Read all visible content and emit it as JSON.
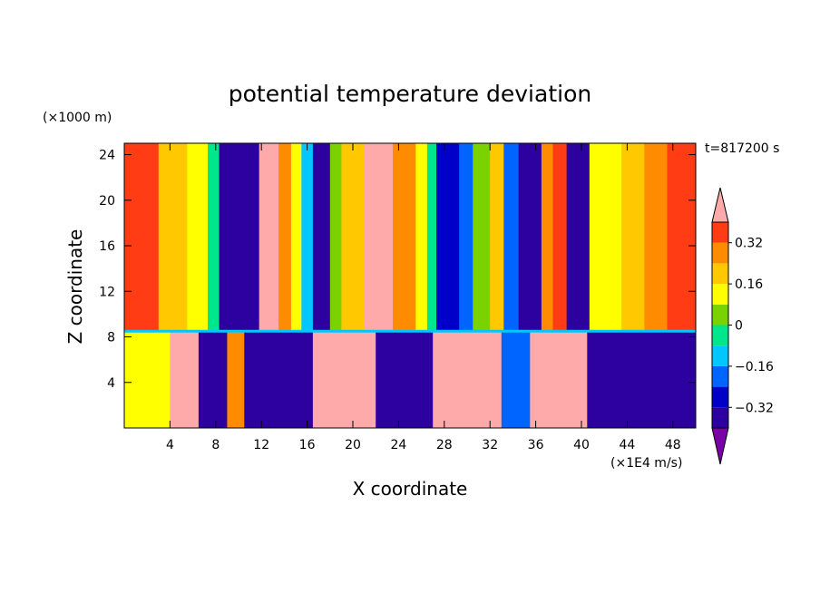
{
  "chart_data": {
    "type": "heatmap",
    "title": "potential temperature deviation",
    "xlabel": "X coordinate",
    "ylabel": "Z coordinate",
    "x_unit": "(×1E4 m/s)",
    "y_unit": "(×1000 m)",
    "time_label": "t=817200 s",
    "xlim": [
      0,
      50
    ],
    "ylim": [
      0,
      25
    ],
    "x_ticks": [
      4,
      8,
      12,
      16,
      20,
      24,
      28,
      32,
      36,
      40,
      44,
      48
    ],
    "y_ticks": [
      4,
      8,
      12,
      16,
      20,
      24
    ],
    "colorbar": {
      "levels": [
        -0.4,
        -0.32,
        -0.24,
        -0.16,
        -0.08,
        0,
        0.08,
        0.16,
        0.24,
        0.32,
        0.4
      ],
      "labels": [
        "0.32",
        "0.16",
        "0",
        "−0.16",
        "−0.32"
      ],
      "label_values": [
        0.32,
        0.16,
        0,
        -0.16,
        -0.32
      ],
      "colors": [
        "#7a00aa",
        "#2d00a0",
        "#0000c8",
        "#0064ff",
        "#00c8ff",
        "#00e68c",
        "#7ad200",
        "#ffff00",
        "#ffc800",
        "#ff8c00",
        "#ff3c14",
        "#ffaaaa"
      ],
      "extend": "both"
    },
    "columns": [
      {
        "x_start": 0,
        "x_end": 3,
        "value": 0.33
      },
      {
        "x_start": 3,
        "x_end": 5.5,
        "value": 0.21
      },
      {
        "x_start": 5.5,
        "x_end": 7.3,
        "value": 0.1
      },
      {
        "x_start": 7.3,
        "x_end": 8.3,
        "value": -0.05
      },
      {
        "x_start": 8.3,
        "x_end": 11.8,
        "value": -0.4
      },
      {
        "x_start": 11.8,
        "x_end": 13.5,
        "value": 0.42
      },
      {
        "x_start": 13.5,
        "x_end": 14.6,
        "value": 0.25
      },
      {
        "x_start": 14.6,
        "x_end": 15.5,
        "value": 0.1
      },
      {
        "x_start": 15.5,
        "x_end": 16.5,
        "value": -0.12
      },
      {
        "x_start": 16.5,
        "x_end": 18,
        "value": -0.4
      },
      {
        "x_start": 18,
        "x_end": 19,
        "value": 0.05
      },
      {
        "x_start": 19,
        "x_end": 21,
        "value": 0.2
      },
      {
        "x_start": 21,
        "x_end": 23.5,
        "value": 0.42
      },
      {
        "x_start": 23.5,
        "x_end": 25.5,
        "value": 0.28
      },
      {
        "x_start": 25.5,
        "x_end": 26.5,
        "value": 0.12
      },
      {
        "x_start": 26.5,
        "x_end": 27.3,
        "value": -0.05
      },
      {
        "x_start": 27.3,
        "x_end": 29.3,
        "value": -0.3
      },
      {
        "x_start": 29.3,
        "x_end": 30.5,
        "value": -0.18
      },
      {
        "x_start": 30.5,
        "x_end": 32,
        "value": 0.03
      },
      {
        "x_start": 32,
        "x_end": 33.2,
        "value": 0.18
      },
      {
        "x_start": 33.2,
        "x_end": 34.5,
        "value": -0.2
      },
      {
        "x_start": 34.5,
        "x_end": 36.5,
        "value": -0.4
      },
      {
        "x_start": 36.5,
        "x_end": 37.5,
        "value": 0.24
      },
      {
        "x_start": 37.5,
        "x_end": 38.7,
        "value": 0.35
      },
      {
        "x_start": 38.7,
        "x_end": 40.7,
        "value": -0.4
      },
      {
        "x_start": 40.7,
        "x_end": 43.5,
        "value": 0.1
      },
      {
        "x_start": 43.5,
        "x_end": 45.5,
        "value": 0.22
      },
      {
        "x_start": 45.5,
        "x_end": 47.5,
        "value": 0.3
      },
      {
        "x_start": 47.5,
        "x_end": 50,
        "value": 0.38
      }
    ],
    "lower_layer": {
      "z_top": 8.5,
      "patches": [
        {
          "x_start": 0,
          "x_end": 4,
          "value": 0.1
        },
        {
          "x_start": 4,
          "x_end": 6.5,
          "value": 0.42
        },
        {
          "x_start": 6.5,
          "x_end": 9,
          "value": -0.4
        },
        {
          "x_start": 9,
          "x_end": 10.5,
          "value": 0.3
        },
        {
          "x_start": 10.5,
          "x_end": 16.5,
          "value": -0.4
        },
        {
          "x_start": 16.5,
          "x_end": 22,
          "value": 0.42
        },
        {
          "x_start": 22,
          "x_end": 27,
          "value": -0.4
        },
        {
          "x_start": 27,
          "x_end": 33,
          "value": 0.42
        },
        {
          "x_start": 33,
          "x_end": 35.5,
          "value": -0.2
        },
        {
          "x_start": 35.5,
          "x_end": 40.5,
          "value": 0.42
        },
        {
          "x_start": 40.5,
          "x_end": 50,
          "value": -0.4
        }
      ]
    }
  }
}
